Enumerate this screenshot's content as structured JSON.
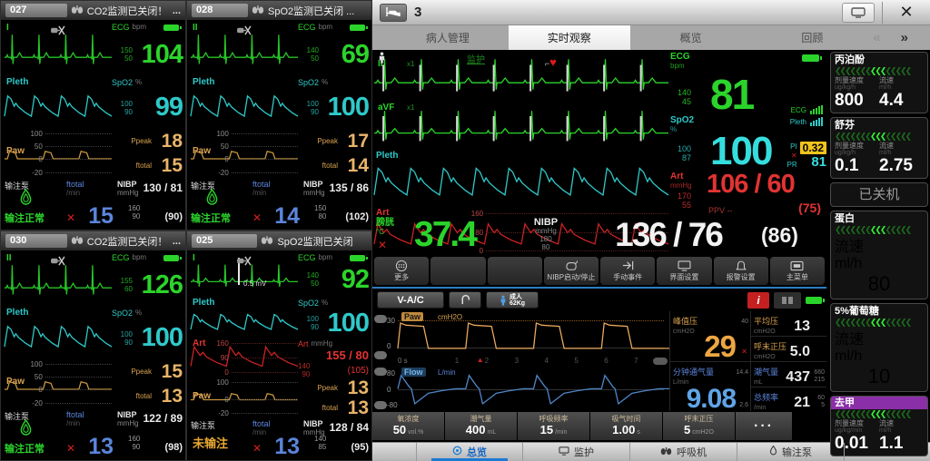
{
  "glyphs": {
    "x_off": "✕",
    "heart": "♥",
    "prev": "«",
    "next": "»",
    "close": "✕",
    "marker": "▲",
    "more_dots": "···"
  },
  "tiles": [
    {
      "id": "027",
      "alarm": "CO2监测已关闭！",
      "more": "...",
      "ecg": {
        "lead": "I",
        "label": "ECG",
        "unit": "bpm",
        "hi": "150",
        "lo": "50",
        "value": "104"
      },
      "pleth": {
        "wave_label": "Pleth",
        "label": "SpO2",
        "unit": "%",
        "hi": "100",
        "lo": "90",
        "value": "99"
      },
      "paw": {
        "label": "Paw",
        "scale": [
          "100",
          "50",
          "0",
          "-20"
        ],
        "p1_label": "Ppeak",
        "p1": "18",
        "p2_label": "ftotal",
        "p2": "15"
      },
      "pump": {
        "label": "输注泵",
        "status": "输注正常",
        "ok": true,
        "rate_label": "ftotal",
        "rate_unit": "/min",
        "value": "15"
      },
      "nibp": {
        "label": "NIBP",
        "unit": "mmHg",
        "value": "130 / 81",
        "hi": "160",
        "lo": "90",
        "mean": "(90)"
      }
    },
    {
      "id": "028",
      "alarm": "SpO2监测已关闭 ...",
      "more": "",
      "ecg": {
        "lead": "II",
        "label": "ECG",
        "unit": "bpm",
        "hi": "140",
        "lo": "50",
        "value": "69"
      },
      "pleth": {
        "wave_label": "Pleth",
        "label": "SpO2",
        "unit": "%",
        "hi": "100",
        "lo": "90",
        "value": "100"
      },
      "paw": {
        "label": "Paw",
        "scale": [
          "100",
          "50",
          "0",
          "-20"
        ],
        "p1_label": "Ppeak",
        "p1": "17",
        "p2_label": "ftotal",
        "p2": "14"
      },
      "pump": {
        "label": "输注泵",
        "status": "输注正常",
        "ok": true,
        "rate_label": "ftotal",
        "rate_unit": "/min",
        "value": "14"
      },
      "nibp": {
        "label": "NIBP",
        "unit": "mmHg",
        "value": "135 / 86",
        "hi": "150",
        "lo": "80",
        "mean": "(102)"
      }
    },
    {
      "id": "030",
      "alarm": "CO2监测已关闭！",
      "more": "...",
      "ecg": {
        "lead": "II",
        "label": "ECG",
        "unit": "bpm",
        "hi": "155",
        "lo": "60",
        "value": "126"
      },
      "pleth": {
        "wave_label": "Pleth",
        "label": "SpO2",
        "unit": "%",
        "hi": "100",
        "lo": "90",
        "value": "100"
      },
      "paw": {
        "label": "Paw",
        "scale": [
          "100",
          "50",
          "0",
          "-20"
        ],
        "p1_label": "Ppeak",
        "p1": "15",
        "p2_label": "ftotal",
        "p2": "13"
      },
      "pump": {
        "label": "输注泵",
        "status": "输注正常",
        "ok": true,
        "rate_label": "ftotal",
        "rate_unit": "/min",
        "value": "13"
      },
      "nibp": {
        "label": "NIBP",
        "unit": "mmHg",
        "value": "122 / 89",
        "hi": "160",
        "lo": "90",
        "mean": "(98)"
      }
    },
    {
      "id": "025",
      "alarm": "SpO2监测已关闭",
      "more": "",
      "ecg": {
        "lead": "I",
        "note": "0.5 mV",
        "label": "ECG",
        "unit": "bpm",
        "hi": "140",
        "lo": "50",
        "value": "92"
      },
      "pleth": {
        "wave_label": "Pleth",
        "label": "SpO2",
        "unit": "%",
        "hi": "100",
        "lo": "90",
        "value": "100"
      },
      "art": {
        "wave_label": "Art",
        "scale": [
          "160",
          "90",
          "0"
        ],
        "label": "Art",
        "unit": "mmHg",
        "value": "155 / 80",
        "hi": "140",
        "lo": "90",
        "mean": "(105)"
      },
      "paw": {
        "label": "Paw",
        "scale": [
          "100",
          "0",
          "-20"
        ],
        "p1_label": "Ppeak",
        "p1": "13",
        "p2_label": "ftotal",
        "p2": "13"
      },
      "pump": {
        "label": "输注泵",
        "status": "未输注",
        "ok": false,
        "rate_label": "ftotal",
        "rate_unit": "/min",
        "value": "13"
      },
      "nibp": {
        "label": "NIBP",
        "unit": "mmHg",
        "value": "128 / 84",
        "hi": "140",
        "lo": "85",
        "mean": "(95)"
      }
    }
  ],
  "center": {
    "titlebar": {
      "bed_label": "3"
    },
    "tabs": [
      {
        "label": "病人管理"
      },
      {
        "label": "实时观察",
        "active": true
      },
      {
        "label": "概览"
      },
      {
        "label": "回顾"
      }
    ],
    "monitor": {
      "lead1": "II",
      "lead1_scale": "x1",
      "mode_text": "监护",
      "lead2": "aVF",
      "lead2_scale": "x1",
      "ecg": {
        "label": "ECG",
        "unit": "bpm",
        "hi": "140",
        "lo": "45",
        "value": "81"
      },
      "signal": {
        "ecg": "ECG",
        "pleth": "Pleth"
      },
      "pleth_label": "Pleth",
      "spo2": {
        "label": "SpO2",
        "unit": "%",
        "hi": "100",
        "lo": "87",
        "value": "100",
        "pi_label": "PI",
        "pi": "0.32",
        "pr_label": "PR",
        "pr": "81"
      },
      "art": {
        "wave_label": "Art",
        "scale": [
          "160",
          "80",
          "0"
        ],
        "label": "Art",
        "unit": "mmHg",
        "hi": "170",
        "lo": "55",
        "value": "106 / 60",
        "mean": "(75)",
        "ppv_label": "PPV",
        "ppv_value": "--"
      },
      "temp": {
        "label": "膀胱",
        "unit": "°C",
        "value": "37.4"
      },
      "nibp": {
        "label": "NIBP",
        "unit": "mmHg",
        "hi": "180",
        "lo": "80",
        "value": "136 / 76",
        "mean": "(86)"
      }
    },
    "buttons": [
      {
        "label": "更多"
      },
      {
        "label": ""
      },
      {
        "label": ""
      },
      {
        "label": "NIBP启动/停止"
      },
      {
        "label": "手动事件"
      },
      {
        "label": "界面设置"
      },
      {
        "label": "报警设置"
      },
      {
        "label": "主菜单"
      }
    ],
    "vent": {
      "mode": "V-A/C",
      "patient_type": "成人",
      "patient_weight": "62Kg",
      "info": "i",
      "paw": {
        "label": "Paw",
        "unit": "cmH2O",
        "hi": "30",
        "lo": "0",
        "x_start": "0 s",
        "ticks": [
          "1",
          "2",
          "3",
          "4",
          "5",
          "6",
          "7"
        ]
      },
      "flow": {
        "label": "Flow",
        "unit": "L/min",
        "hi": "80",
        "mid": "0",
        "lo": "-80"
      },
      "metrics": [
        {
          "label": "峰值压",
          "unit": "cmH2O",
          "value": "29",
          "hi": "40"
        },
        {
          "label": "平均压",
          "unit": "cmH2O",
          "value": "13"
        },
        {
          "label": "呼末正压",
          "unit": "cmH2O",
          "value": "5.0"
        },
        {
          "label": "分钟通气量",
          "unit": "L/min",
          "value": "9.08",
          "hi": "14.4",
          "lo": "2.6"
        },
        {
          "label": "潮气量",
          "unit": "mL",
          "value": "437",
          "hi": "660",
          "lo": "215"
        },
        {
          "label": "总频率",
          "unit": "/min",
          "value": "21",
          "hi": "60",
          "lo": "5"
        }
      ],
      "settings": [
        {
          "label": "氧浓度",
          "value": "50",
          "unit": "vol.%"
        },
        {
          "label": "潮气量",
          "value": "400",
          "unit": "mL"
        },
        {
          "label": "呼吸频率",
          "value": "15",
          "unit": "/min"
        },
        {
          "label": "吸气时间",
          "value": "1.00",
          "unit": "s"
        },
        {
          "label": "呼末正压",
          "value": "5",
          "unit": "cmH2O"
        }
      ],
      "more_label": "···"
    },
    "bottom_tabs": [
      {
        "label": "总览",
        "active": true
      },
      {
        "label": "监护"
      },
      {
        "label": "呼吸机"
      },
      {
        "label": "输注泵"
      }
    ]
  },
  "pumps": [
    {
      "name": "丙泊酚",
      "dose_label": "剂量速度",
      "dose_unit": "ug/kg/h",
      "dose": "800",
      "rate_label": "流速",
      "rate_unit": "ml/h",
      "rate": "4.4"
    },
    {
      "name": "舒芬",
      "dose_label": "剂量速度",
      "dose_unit": "ug/kg/h",
      "dose": "0.1",
      "rate_label": "流速",
      "rate_unit": "ml/h",
      "rate": "2.75"
    },
    {
      "status": "已关机"
    },
    {
      "name": "蛋白",
      "rate_label": "流速",
      "rate_unit": "ml/h",
      "rate": "80"
    },
    {
      "name": "5%葡萄糖",
      "rate_label": "流速",
      "rate_unit": "ml/h",
      "rate": "10"
    },
    {
      "name": "去甲",
      "highlight": true,
      "dose_label": "剂量速度",
      "dose_unit": "ug/kg/min",
      "dose": "0.01",
      "rate_label": "流速",
      "rate_unit": "ml/h",
      "rate": "1.1"
    }
  ]
}
